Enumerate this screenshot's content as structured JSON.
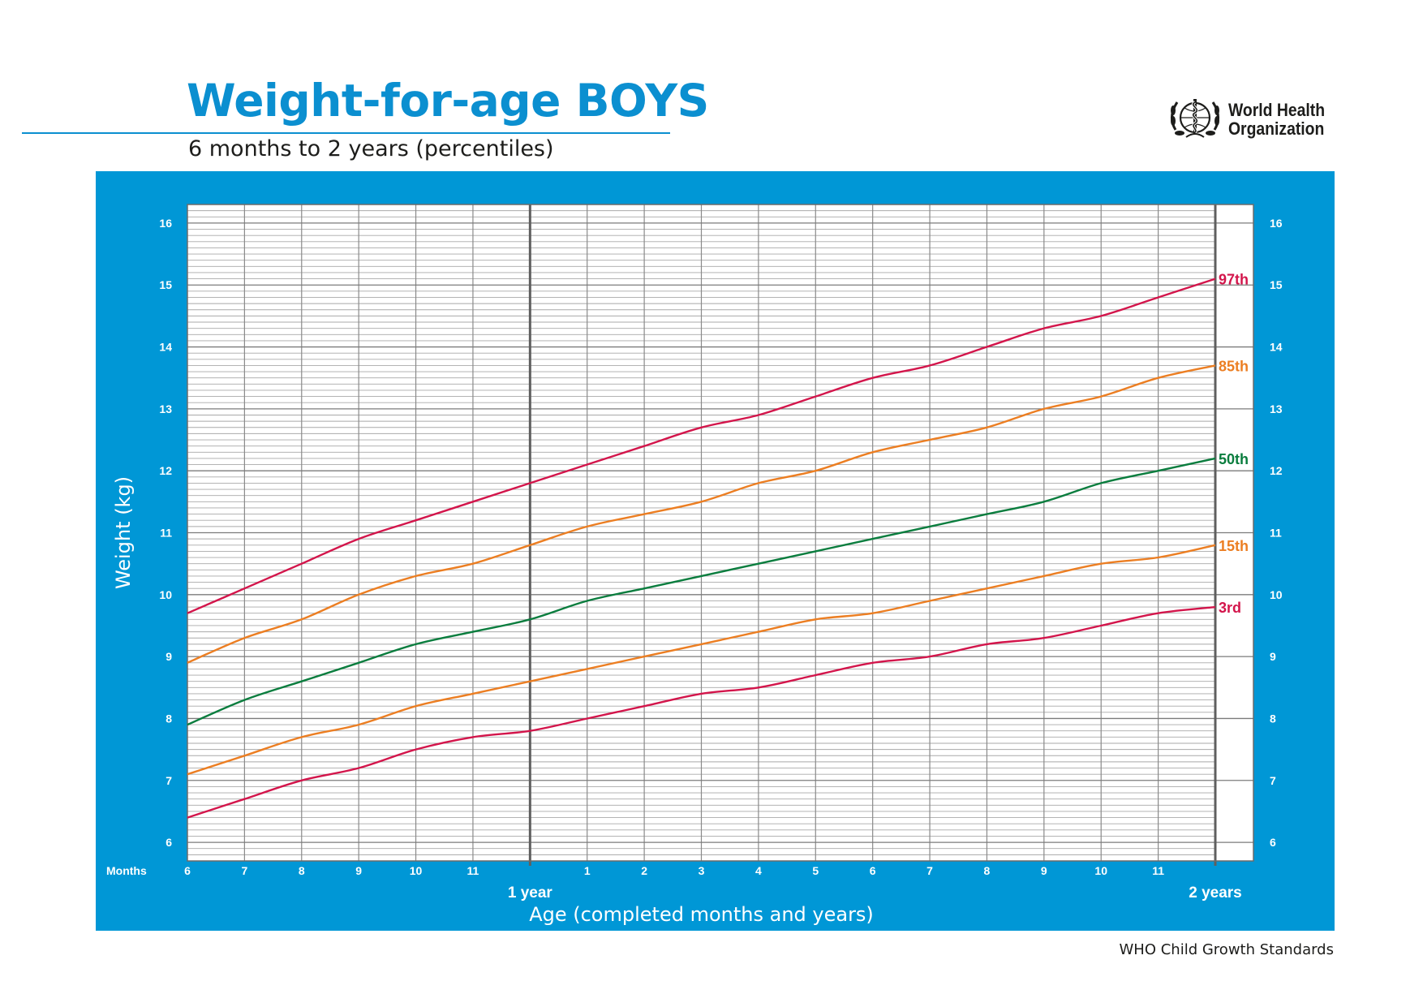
{
  "header": {
    "title": "Weight-for-age BOYS",
    "subtitle": "6 months to 2 years (percentiles)",
    "org_name_line1": "World Health",
    "org_name_line2": "Organization"
  },
  "footer": {
    "text": "WHO Child Growth Standards"
  },
  "colors": {
    "accent": "#0097d6",
    "title_blue": "#0b8fd0",
    "p3": "#d3154b",
    "p15": "#ec7e22",
    "p50": "#0a7d3e",
    "p85": "#ec7e22",
    "p97": "#d3154b"
  },
  "chart_data": {
    "type": "line",
    "title": "Weight-for-age BOYS",
    "subtitle": "6 months to 2 years (percentiles)",
    "xlabel": "Age (completed months and years)",
    "ylabel": "Weight (kg)",
    "x_axis_caption": "Months",
    "x_unit": "months",
    "xlim": [
      6,
      24
    ],
    "ylim": [
      5.7,
      16.3
    ],
    "x_ticks": [
      {
        "x": 6,
        "label": "6"
      },
      {
        "x": 7,
        "label": "7"
      },
      {
        "x": 8,
        "label": "8"
      },
      {
        "x": 9,
        "label": "9"
      },
      {
        "x": 10,
        "label": "10"
      },
      {
        "x": 11,
        "label": "11"
      },
      {
        "x": 13,
        "label": "1"
      },
      {
        "x": 14,
        "label": "2"
      },
      {
        "x": 15,
        "label": "3"
      },
      {
        "x": 16,
        "label": "4"
      },
      {
        "x": 17,
        "label": "5"
      },
      {
        "x": 18,
        "label": "6"
      },
      {
        "x": 19,
        "label": "7"
      },
      {
        "x": 20,
        "label": "8"
      },
      {
        "x": 21,
        "label": "9"
      },
      {
        "x": 22,
        "label": "10"
      },
      {
        "x": 23,
        "label": "11"
      }
    ],
    "year_markers": [
      {
        "x": 12,
        "label": "1 year"
      },
      {
        "x": 24,
        "label": "2 years"
      }
    ],
    "y_ticks": [
      6,
      7,
      8,
      9,
      10,
      11,
      12,
      13,
      14,
      15,
      16
    ],
    "grid": true,
    "legend": "line-end labels, right",
    "x": [
      6,
      7,
      8,
      9,
      10,
      11,
      12,
      13,
      14,
      15,
      16,
      17,
      18,
      19,
      20,
      21,
      22,
      23,
      24
    ],
    "series": [
      {
        "name": "97th",
        "color": "#d3154b",
        "values": [
          9.7,
          10.1,
          10.5,
          10.9,
          11.2,
          11.5,
          11.8,
          12.1,
          12.4,
          12.7,
          12.9,
          13.2,
          13.5,
          13.7,
          14.0,
          14.3,
          14.5,
          14.8,
          15.1
        ]
      },
      {
        "name": "85th",
        "color": "#ec7e22",
        "values": [
          8.9,
          9.3,
          9.6,
          10.0,
          10.3,
          10.5,
          10.8,
          11.1,
          11.3,
          11.5,
          11.8,
          12.0,
          12.3,
          12.5,
          12.7,
          13.0,
          13.2,
          13.5,
          13.7
        ]
      },
      {
        "name": "50th",
        "color": "#0a7d3e",
        "values": [
          7.9,
          8.3,
          8.6,
          8.9,
          9.2,
          9.4,
          9.6,
          9.9,
          10.1,
          10.3,
          10.5,
          10.7,
          10.9,
          11.1,
          11.3,
          11.5,
          11.8,
          12.0,
          12.2
        ]
      },
      {
        "name": "15th",
        "color": "#ec7e22",
        "values": [
          7.1,
          7.4,
          7.7,
          7.9,
          8.2,
          8.4,
          8.6,
          8.8,
          9.0,
          9.2,
          9.4,
          9.6,
          9.7,
          9.9,
          10.1,
          10.3,
          10.5,
          10.6,
          10.8
        ]
      },
      {
        "name": "3rd",
        "color": "#d3154b",
        "values": [
          6.4,
          6.7,
          7.0,
          7.2,
          7.5,
          7.7,
          7.8,
          8.0,
          8.2,
          8.4,
          8.5,
          8.7,
          8.9,
          9.0,
          9.2,
          9.3,
          9.5,
          9.7,
          9.8
        ]
      }
    ],
    "series_labels": [
      "97th",
      "85th",
      "50th",
      "15th",
      "3rd"
    ]
  }
}
